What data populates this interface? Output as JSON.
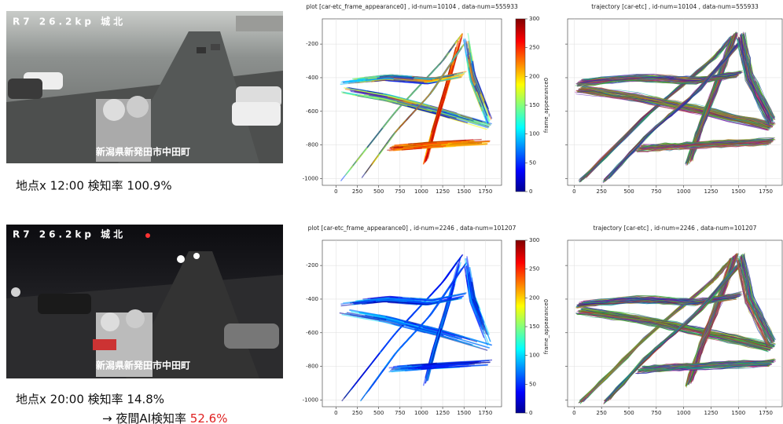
{
  "panels": [
    {
      "camera": {
        "label": "R7 26.2kp 城北",
        "location": "新潟県新発田市中田町"
      },
      "caption": {
        "text": "地点x 12:00 検知率 100.9%"
      },
      "plot": {
        "type": "scatter",
        "title": "plot [car-etc_frame_appearance0] , id-num=10104 , data-num=555933",
        "xlim": [
          -160,
          1940
        ],
        "ylim": [
          -1040,
          -50
        ],
        "xticks": [
          0,
          250,
          500,
          750,
          1000,
          1250,
          1500,
          1750
        ],
        "yticks": [
          -1000,
          -800,
          -600,
          -400,
          -200
        ],
        "colorbar": {
          "label": "frame_appearance0",
          "lim": [
            0,
            300
          ],
          "ticks": [
            0,
            50,
            100,
            150,
            200,
            250,
            300
          ]
        }
      },
      "trajectory": {
        "type": "line",
        "title": "trajectory [car-etc] , id-num=10104 , data-num=555933",
        "xlim": [
          -60,
          1900
        ],
        "ylim": [
          -1040,
          -50
        ],
        "xticks": [
          0,
          250,
          500,
          750,
          1000,
          1250,
          1500,
          1750
        ],
        "yticks": [
          -1000,
          -800,
          -600,
          -400,
          -200
        ]
      }
    },
    {
      "camera": {
        "label": "R7 26.2kp 城北",
        "location": "新潟県新発田市中田町"
      },
      "caption": {
        "text": "地点x 20:00 検知率 14.8%",
        "night_text": "→ 夜間AI検知率 ",
        "night_rate": "52.6%"
      },
      "plot": {
        "type": "scatter",
        "title": "plot [car-etc_frame_appearance0] , id-num=2246 , data-num=101207",
        "xlim": [
          -160,
          1940
        ],
        "ylim": [
          -1040,
          -50
        ],
        "xticks": [
          0,
          250,
          500,
          750,
          1000,
          1250,
          1500,
          1750
        ],
        "yticks": [
          -1000,
          -800,
          -600,
          -400,
          -200
        ],
        "colorbar": {
          "label": "frame_appearance0",
          "lim": [
            0,
            300
          ],
          "ticks": [
            0,
            50,
            100,
            150,
            200,
            250,
            300
          ]
        }
      },
      "trajectory": {
        "type": "line",
        "title": "trajectory [car-etc] , id-num=2246 , data-num=101207",
        "xlim": [
          -60,
          1900
        ],
        "ylim": [
          -1040,
          -50
        ],
        "xticks": [
          0,
          250,
          500,
          750,
          1000,
          1250,
          1500,
          1750
        ],
        "yticks": [
          -1000,
          -800,
          -600,
          -400,
          -200
        ]
      }
    }
  ]
}
